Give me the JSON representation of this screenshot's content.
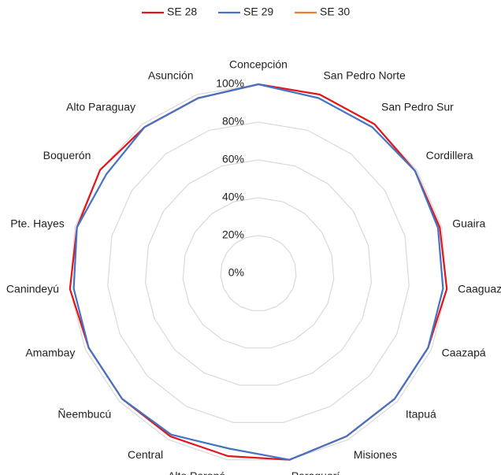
{
  "chart_data": {
    "type": "radar",
    "categories": [
      "Concepción",
      "San Pedro Norte",
      "San Pedro Sur",
      "Cordillera",
      "Guaira",
      "Caaguazú",
      "Caazapá",
      "Itapuá",
      "Misiones",
      "Paraguarí",
      "Alto Paraná",
      "Central",
      "Ñeembucú",
      "Amambay",
      "Canindeyú",
      "Pte. Hayes",
      "Boquerón",
      "Alto Paraguay",
      "Asunción"
    ],
    "series": [
      {
        "name": "SE 28",
        "color": "#e0161b",
        "values": [
          100,
          100,
          100,
          99,
          99,
          100,
          98,
          98,
          98,
          100,
          98,
          98,
          98,
          98,
          100,
          99,
          100,
          98,
          98
        ]
      },
      {
        "name": "SE 29",
        "color": "#4472c4",
        "values": [
          100,
          98,
          98,
          99,
          98,
          98,
          98,
          98,
          98,
          100,
          94,
          97,
          98,
          98,
          98,
          99,
          96,
          98,
          98
        ]
      },
      {
        "name": "SE 30",
        "color": "#ed7d31",
        "values": [
          null,
          null,
          null,
          null,
          null,
          null,
          null,
          null,
          null,
          null,
          null,
          null,
          null,
          null,
          null,
          null,
          null,
          null,
          null
        ]
      }
    ],
    "ylim": [
      0,
      100
    ],
    "yticks": [
      {
        "value": 0,
        "label": "0%"
      },
      {
        "value": 20,
        "label": "20%"
      },
      {
        "value": 40,
        "label": "40%"
      },
      {
        "value": 60,
        "label": "60%"
      },
      {
        "value": 80,
        "label": "80%"
      },
      {
        "value": 100,
        "label": "100%"
      }
    ],
    "grid": true,
    "legend": "top"
  }
}
